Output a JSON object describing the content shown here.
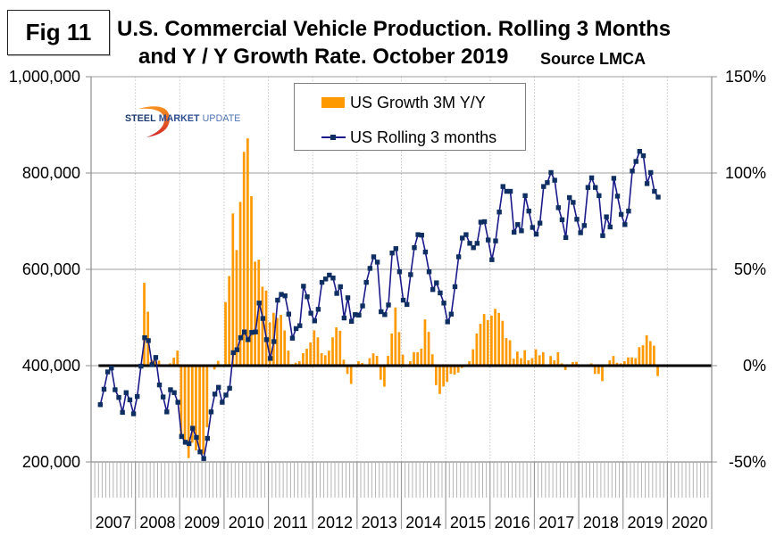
{
  "header": {
    "figure_label": "Fig 11",
    "title_line1": "U.S. Commercial Vehicle Production. Rolling 3 Months",
    "title_line2": "and Y / Y Growth Rate. October 2019",
    "source": "Source LMCA"
  },
  "logo": {
    "part1": "STEEL",
    "part2": "MARKET",
    "part3": "UPDATE"
  },
  "colors": {
    "bars": "#FF9900",
    "line": "#1A1A8A",
    "marker": "#0F2F62",
    "zero_line": "#000000",
    "logo_steel": "#1C3A6E",
    "logo_market": "#2B4C8F",
    "logo_update": "#4C72B4",
    "logo_swoosh_top": "#F7941D",
    "logo_swoosh_bottom": "#D2232A"
  },
  "chart_data": {
    "type": "bar",
    "title": "U.S. Commercial Vehicle Production. Rolling 3 Months and Y / Y Growth Rate. October 2019",
    "source": "Source LMCA",
    "xlabel": "",
    "x_range": [
      "2007-01",
      "2020-12"
    ],
    "categories": [
      "2007",
      "2008",
      "2009",
      "2010",
      "2011",
      "2012",
      "2013",
      "2014",
      "2015",
      "2016",
      "2017",
      "2018",
      "2019",
      "2020"
    ],
    "grid": true,
    "left_axis": {
      "label": "",
      "range": [
        200000,
        1000000
      ],
      "ticks": [
        200000,
        400000,
        600000,
        800000,
        1000000
      ],
      "tick_labels": [
        "200,000",
        "400,000",
        "600,000",
        "800,000",
        "1,000,000"
      ]
    },
    "right_axis": {
      "label": "",
      "range": [
        -50,
        150
      ],
      "ticks": [
        -50,
        0,
        50,
        100,
        150
      ],
      "tick_labels": [
        "-50%",
        "0%",
        "50%",
        "100%",
        "150%"
      ]
    },
    "legend": {
      "position": "top-center",
      "items": [
        "US Growth 3M Y/Y",
        "US Rolling 3 months"
      ]
    },
    "series": [
      {
        "name": "US Growth 3M Y/Y",
        "type": "bar",
        "axis": "right",
        "unit": "%",
        "start": "2008-03",
        "frequency": "monthly",
        "values": [
          43,
          28,
          3,
          4,
          2.6,
          0,
          0,
          1.2,
          4.2,
          7.8,
          -37,
          -41,
          -48,
          -40,
          -44,
          -45,
          -46,
          -32,
          0,
          -2,
          2.5,
          0,
          33,
          46.5,
          79,
          60,
          85,
          111,
          118,
          88,
          54,
          55,
          41,
          39,
          22.5,
          27.4,
          24.8,
          26.4,
          18.3,
          7.8,
          0.8,
          1.5,
          2.3,
          6.5,
          8.8,
          12.1,
          18.3,
          14.7,
          6.5,
          5.4,
          7.8,
          14.7,
          19.9,
          18.1,
          3.1,
          -4.3,
          -9.5,
          0,
          2.3,
          1.4,
          0,
          3.9,
          6.4,
          5.1,
          -7.3,
          -10.9,
          5.1,
          16.7,
          30.2,
          17.4,
          5.7,
          0,
          2.3,
          7,
          7,
          8.8,
          24,
          17.5,
          5.9,
          -10.1,
          -14.7,
          -10.8,
          -8.5,
          -4.3,
          -4.6,
          -3.6,
          -1.2,
          0,
          2.3,
          8.5,
          16.7,
          21.7,
          26.8,
          23.7,
          26,
          29.5,
          27.4,
          23.3,
          14.3,
          13.2,
          3.6,
          7.3,
          3.9,
          8,
          2.8,
          3.9,
          8.5,
          5.4,
          7,
          0,
          5,
          2.8,
          7,
          1.2,
          -2.3,
          0,
          1.9,
          2,
          0,
          0,
          0,
          1.2,
          -4.3,
          -4.3,
          -8,
          0,
          2.8,
          5,
          1.5,
          1.2,
          2.3,
          4.3,
          4.3,
          3.9,
          9.6,
          10.6,
          15.8,
          12.7,
          10.4,
          -5.4
        ]
      },
      {
        "name": "US Rolling 3 months",
        "type": "line",
        "axis": "left",
        "unit": "units",
        "start": "2007-03",
        "frequency": "monthly",
        "values": [
          319000,
          351000,
          387000,
          395000,
          350000,
          334000,
          303000,
          344000,
          329000,
          300000,
          336000,
          399000,
          458000,
          452000,
          402000,
          417000,
          360000,
          335000,
          304000,
          350000,
          344000,
          324000,
          253000,
          241000,
          238000,
          270000,
          251000,
          221000,
          207000,
          249000,
          304000,
          341000,
          355000,
          324000,
          339000,
          353000,
          427000,
          433000,
          458000,
          470000,
          454000,
          469000,
          470000,
          530000,
          498000,
          454000,
          415000,
          450000,
          536000,
          548000,
          545000,
          507000,
          457000,
          477000,
          483000,
          565000,
          543000,
          509000,
          493000,
          517000,
          573000,
          580000,
          588000,
          582000,
          550000,
          564000,
          499000,
          541000,
          492000,
          506000,
          505000,
          524000,
          573000,
          602000,
          626000,
          615000,
          512000,
          506000,
          526000,
          634000,
          643000,
          595000,
          536000,
          527000,
          589000,
          645000,
          672000,
          671000,
          636000,
          595000,
          558000,
          572000,
          551000,
          530000,
          491000,
          507000,
          564000,
          626000,
          665000,
          672000,
          654000,
          645000,
          654000,
          698000,
          699000,
          661000,
          620000,
          659000,
          719000,
          772000,
          762000,
          762000,
          677000,
          693000,
          680000,
          753000,
          721000,
          687000,
          673000,
          696000,
          772000,
          780000,
          801000,
          785000,
          728000,
          703000,
          666000,
          749000,
          739000,
          704000,
          676000,
          691000,
          770000,
          790000,
          770000,
          753000,
          670000,
          709000,
          688000,
          789000,
          752000,
          714000,
          693000,
          721000,
          804000,
          824000,
          845000,
          836000,
          778000,
          801000,
          762000,
          750000
        ]
      }
    ]
  }
}
